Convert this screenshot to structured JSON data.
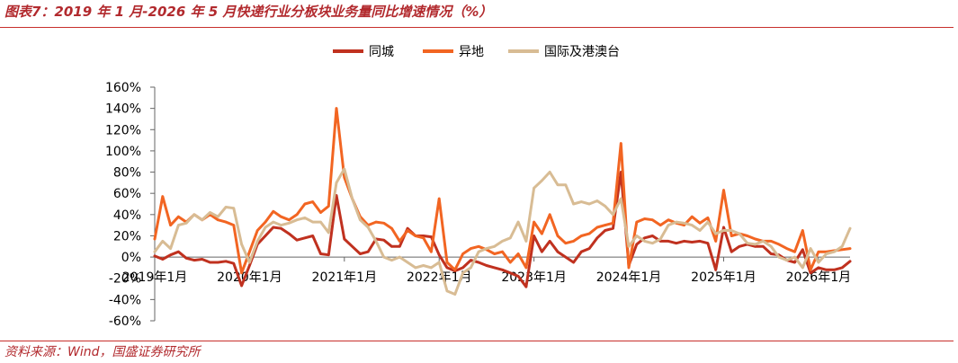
{
  "source": "资料来源：Wind，国盛证券研究所",
  "theme": {
    "accent": "#B22A2E",
    "rule": "#C8302C",
    "axis": "#666666"
  },
  "chart_data": {
    "type": "line",
    "title": "图表7：2019 年 1 月-2026 年 5 月快递行业分板块业务量同比增速情况（%）",
    "x_tick_labels": [
      "2019年1月",
      "2020年1月",
      "2021年1月",
      "2022年1月",
      "2023年1月",
      "2024年1月",
      "2025年1月",
      "2026年1月"
    ],
    "y_tick_labels": [
      "160%",
      "140%",
      "120%",
      "100%",
      "80%",
      "60%",
      "40%",
      "20%",
      "0%",
      "-20%",
      "-40%",
      "-60%"
    ],
    "ylim": [
      -60,
      160
    ],
    "y_unit": "%",
    "grid": false,
    "legend": "top-center",
    "series": [
      {
        "name": "同城",
        "color": "#C0311F",
        "values": [
          1,
          -2,
          2,
          5,
          -1,
          -3,
          -2,
          -5,
          -5,
          -4,
          -6,
          -27,
          -8,
          12,
          20,
          28,
          27,
          22,
          16,
          18,
          20,
          3,
          2,
          58,
          17,
          10,
          3,
          5,
          17,
          16,
          10,
          10,
          27,
          20,
          20,
          19,
          2,
          -10,
          -13,
          -10,
          -3,
          -5,
          -8,
          -10,
          -12,
          -15,
          -18,
          -28,
          20,
          5,
          15,
          5,
          0,
          -5,
          5,
          8,
          18,
          25,
          27,
          80,
          -8,
          12,
          18,
          20,
          15,
          15,
          13,
          15,
          14,
          15,
          13,
          -12,
          28,
          5,
          10,
          12,
          10,
          10,
          3,
          2,
          -3,
          -5,
          7,
          -15,
          -10,
          -12,
          -12,
          -10,
          -4
        ]
      },
      {
        "name": "异地",
        "color": "#F26522",
        "values": [
          17,
          57,
          30,
          38,
          33,
          40,
          35,
          40,
          35,
          33,
          30,
          -15,
          5,
          25,
          33,
          43,
          38,
          35,
          40,
          50,
          52,
          42,
          48,
          140,
          75,
          55,
          38,
          30,
          33,
          32,
          27,
          15,
          25,
          20,
          18,
          5,
          55,
          -5,
          -12,
          3,
          8,
          10,
          7,
          3,
          5,
          -5,
          3,
          -10,
          33,
          22,
          40,
          20,
          13,
          15,
          20,
          22,
          28,
          30,
          32,
          107,
          -10,
          33,
          36,
          35,
          30,
          35,
          32,
          30,
          38,
          32,
          37,
          15,
          63,
          20,
          22,
          20,
          17,
          15,
          15,
          12,
          8,
          5,
          25,
          -12,
          5,
          5,
          6,
          7,
          8
        ]
      },
      {
        "name": "国际及港澳台",
        "color": "#D8BC94",
        "values": [
          5,
          15,
          8,
          30,
          32,
          40,
          35,
          42,
          38,
          47,
          46,
          12,
          -5,
          15,
          28,
          33,
          30,
          32,
          35,
          37,
          33,
          33,
          23,
          70,
          83,
          55,
          35,
          28,
          15,
          0,
          -3,
          0,
          -5,
          -10,
          -8,
          -10,
          -5,
          -32,
          -35,
          -15,
          -10,
          5,
          8,
          10,
          15,
          18,
          33,
          15,
          65,
          72,
          80,
          68,
          68,
          50,
          52,
          50,
          53,
          48,
          40,
          55,
          10,
          20,
          15,
          13,
          17,
          30,
          33,
          32,
          30,
          25,
          33,
          22,
          25,
          25,
          22,
          13,
          12,
          15,
          10,
          0,
          -3,
          0,
          -10,
          8,
          -5,
          3,
          5,
          10,
          27
        ]
      }
    ]
  }
}
